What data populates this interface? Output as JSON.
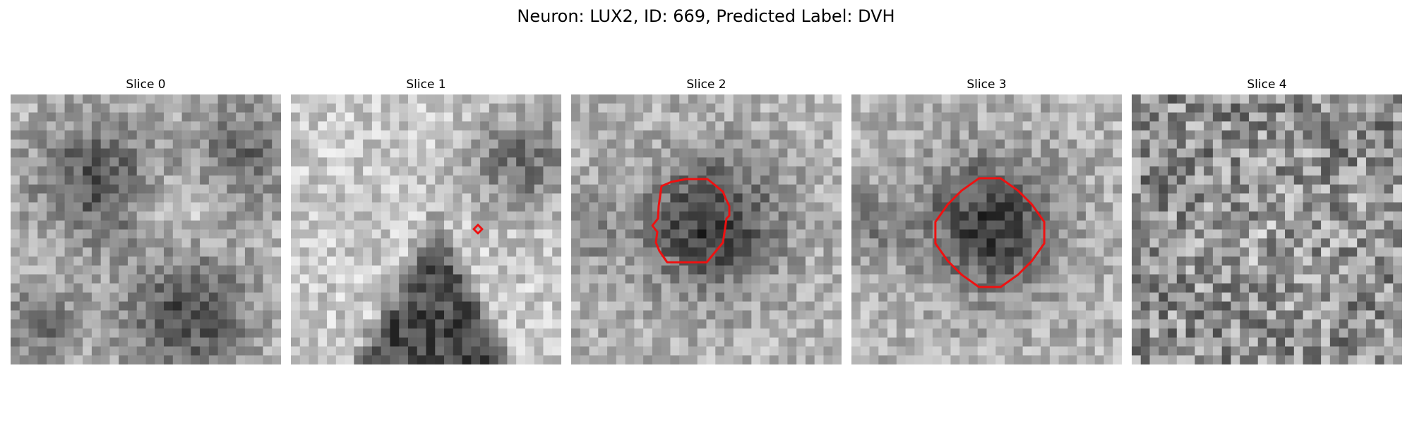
{
  "figure": {
    "title": "Neuron: LUX2, ID: 669, Predicted Label: DVH",
    "grid": 30,
    "contour_color": "#ee1111"
  },
  "slices": [
    {
      "title": "Slice 0",
      "style": "blobs",
      "seed": 11,
      "has_contour": false
    },
    {
      "title": "Slice 1",
      "style": "cone",
      "seed": 23,
      "has_contour": true,
      "contour_kind": "tiny-diamond"
    },
    {
      "title": "Slice 2",
      "style": "center-dark",
      "seed": 37,
      "has_contour": true,
      "contour_kind": "octagon"
    },
    {
      "title": "Slice 3",
      "style": "center-dark",
      "seed": 51,
      "has_contour": true,
      "contour_kind": "octagon"
    },
    {
      "title": "Slice 4",
      "style": "noise",
      "seed": 73,
      "has_contour": false
    }
  ]
}
